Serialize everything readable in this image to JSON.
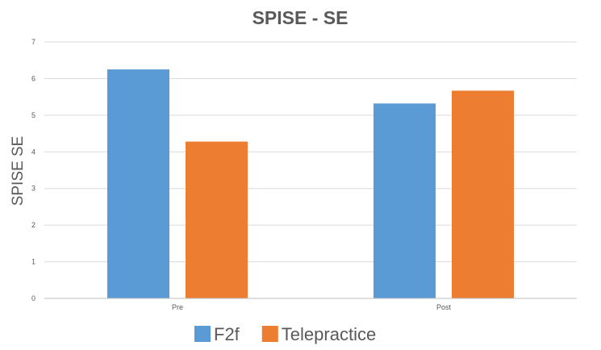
{
  "chart_data": {
    "type": "bar",
    "title": "SPISE - SE",
    "xlabel": "",
    "ylabel": "SPISE SE",
    "categories": [
      "Pre",
      "Post"
    ],
    "series": [
      {
        "name": "F2f",
        "values": [
          6.25,
          5.32
        ],
        "color": "#5b9bd5"
      },
      {
        "name": "Telepractice",
        "values": [
          4.28,
          5.67
        ],
        "color": "#ed7d31"
      }
    ],
    "ylim": [
      0,
      7
    ],
    "yticks": [
      "0",
      "1",
      "2",
      "3",
      "4",
      "5",
      "6",
      "7"
    ],
    "grid": true,
    "legend": "bottom"
  }
}
